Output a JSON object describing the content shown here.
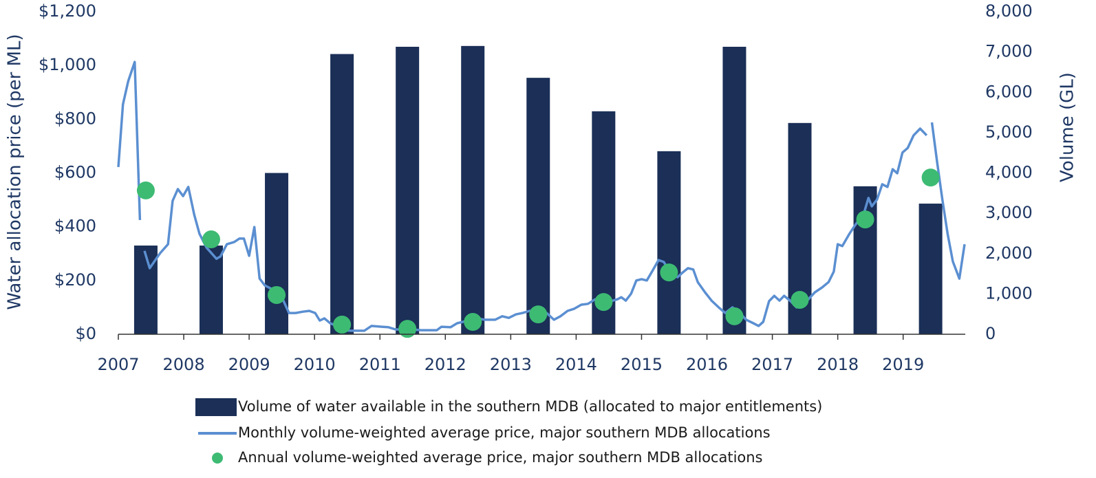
{
  "chart_data": {
    "type": "combo",
    "xlim": [
      2007,
      2019.95
    ],
    "xticks": [
      2007,
      2008,
      2009,
      2010,
      2011,
      2012,
      2013,
      2014,
      2015,
      2016,
      2017,
      2018,
      2019
    ],
    "ylim": [
      0,
      1200
    ],
    "yticks": [
      {
        "value": 0,
        "label": "$0"
      },
      {
        "value": 200,
        "label": "$200"
      },
      {
        "value": 400,
        "label": "$400"
      },
      {
        "value": 600,
        "label": "$600"
      },
      {
        "value": 800,
        "label": "$800"
      },
      {
        "value": 1000,
        "label": "$1,000"
      },
      {
        "value": 1200,
        "label": "$1,200"
      }
    ],
    "y2lim": [
      0,
      8000
    ],
    "y2ticks": [
      0,
      {
        "value": 1000,
        "label": "1,000"
      },
      {
        "value": 2000,
        "label": "2,000"
      },
      {
        "value": 3000,
        "label": "3,000"
      },
      {
        "value": 4000,
        "label": "4,000"
      },
      {
        "value": 5000,
        "label": "5,000"
      },
      {
        "value": 6000,
        "label": "6,000"
      },
      {
        "value": 7000,
        "label": "7,000"
      },
      {
        "value": 8000,
        "label": "8,000"
      }
    ],
    "ylabel": "Water allocation price (per ML)",
    "y2label": "Volume (GL)",
    "series": [
      {
        "name": "Volume of water available in the southern MDB (allocated to major entitlements)",
        "type": "bar",
        "axis": "y2",
        "color": "#1b2f57",
        "x": [
          2007.42,
          2008.42,
          2009.42,
          2010.42,
          2011.42,
          2012.42,
          2013.42,
          2014.42,
          2015.42,
          2016.42,
          2017.42,
          2018.42,
          2019.42
        ],
        "values": [
          2200,
          2200,
          4000,
          6950,
          7130,
          7150,
          6360,
          5530,
          4540,
          7130,
          5240,
          3670,
          3240
        ]
      },
      {
        "name": "Monthly volume-weighted average price, major southern MDB allocations",
        "type": "line",
        "color": "#5b8fd1",
        "x": [
          2007.0,
          2007.07,
          2007.15,
          2007.25,
          2007.33,
          2007.36,
          2007.4,
          2007.48,
          2007.64,
          2007.76,
          2007.83,
          2007.91,
          2007.99,
          2008.07,
          2008.16,
          2008.24,
          2008.35,
          2008.5,
          2008.56,
          2008.66,
          2008.77,
          2008.85,
          2008.92,
          2009.0,
          2009.08,
          2009.16,
          2009.24,
          2009.34,
          2009.5,
          2009.61,
          2009.71,
          2009.82,
          2009.92,
          2010.01,
          2010.08,
          2010.15,
          2010.24,
          2010.32,
          2010.45,
          2010.55,
          2010.66,
          2010.76,
          2010.87,
          2011.03,
          2011.13,
          2011.24,
          2011.4,
          2011.5,
          2011.63,
          2011.76,
          2011.87,
          2011.94,
          2012.08,
          2012.18,
          2012.32,
          2012.45,
          2012.6,
          2012.76,
          2012.87,
          2012.97,
          2013.08,
          2013.18,
          2013.29,
          2013.39,
          2013.55,
          2013.66,
          2013.76,
          2013.87,
          2013.97,
          2014.08,
          2014.18,
          2014.29,
          2014.39,
          2014.53,
          2014.63,
          2014.69,
          2014.76,
          2014.84,
          2014.92,
          2015.0,
          2015.08,
          2015.16,
          2015.26,
          2015.34,
          2015.44,
          2015.55,
          2015.63,
          2015.71,
          2015.79,
          2015.86,
          2015.97,
          2016.07,
          2016.18,
          2016.28,
          2016.39,
          2016.5,
          2016.6,
          2016.71,
          2016.79,
          2016.86,
          2016.95,
          2017.03,
          2017.11,
          2017.18,
          2017.28,
          2017.37,
          2017.44,
          2017.55,
          2017.65,
          2017.76,
          2017.86,
          2017.94,
          2018.0,
          2018.07,
          2018.18,
          2018.26,
          2018.34,
          2018.4,
          2018.47,
          2018.52,
          2018.6,
          2018.68,
          2018.76,
          2018.84,
          2018.91,
          2018.99,
          2019.07,
          2019.16,
          2019.26,
          2019.36,
          2019.4,
          2019.44,
          2019.52,
          2019.6,
          2019.68,
          2019.76,
          2019.86,
          2019.94
        ],
        "values": [
          622,
          855,
          941,
          1013,
          425,
          null,
          310,
          246,
          302,
          335,
          496,
          540,
          514,
          548,
          445,
          374,
          322,
          281,
          289,
          335,
          343,
          356,
          356,
          292,
          399,
          207,
          182,
          169,
          138,
          79,
          79,
          84,
          87,
          79,
          51,
          59,
          41,
          33,
          15,
          13,
          13,
          13,
          31,
          28,
          26,
          18,
          18,
          18,
          15,
          15,
          15,
          28,
          26,
          41,
          49,
          61,
          54,
          54,
          67,
          61,
          74,
          79,
          87,
          79,
          79,
          54,
          67,
          87,
          95,
          110,
          113,
          130,
          125,
          123,
          130,
          138,
          125,
          151,
          200,
          205,
          200,
          233,
          276,
          269,
          230,
          212,
          230,
          246,
          241,
          194,
          156,
          125,
          100,
          79,
          100,
          79,
          54,
          41,
          31,
          46,
          123,
          143,
          125,
          143,
          123,
          100,
          110,
          130,
          156,
          174,
          194,
          233,
          335,
          328,
          374,
          404,
          430,
          450,
          507,
          476,
          501,
          558,
          548,
          614,
          599,
          676,
          693,
          740,
          765,
          740,
          null,
          788,
          640,
          501,
          374,
          271,
          207,
          335
        ]
      },
      {
        "name": "Annual volume-weighted average price, major southern MDB allocations",
        "type": "scatter",
        "color": "#3dbb73",
        "x": [
          2007.42,
          2008.42,
          2009.42,
          2010.42,
          2011.42,
          2012.42,
          2013.42,
          2014.42,
          2015.42,
          2016.42,
          2017.42,
          2018.42,
          2019.42
        ],
        "values": [
          535,
          353,
          146,
          36,
          20,
          46,
          74,
          120,
          230,
          67,
          128,
          427,
          583
        ]
      }
    ]
  }
}
